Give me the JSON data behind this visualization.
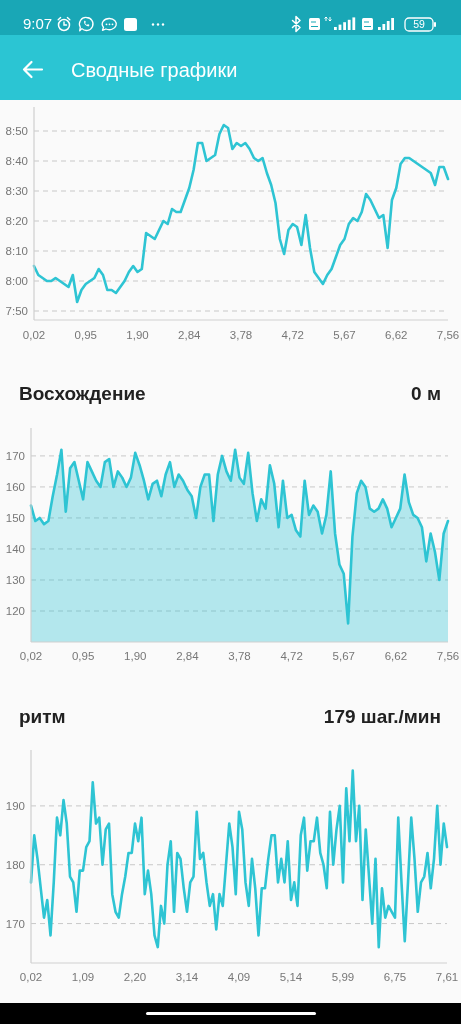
{
  "chart_data": [
    {
      "type": "other",
      "title": "Сводные графики",
      "annotations": [
        "9:07",
        "59"
      ]
    },
    {
      "type": "line",
      "color": "#2ec4d3",
      "categories": [
        "0,02",
        null,
        null,
        null,
        null,
        null,
        null,
        null,
        null,
        null,
        null,
        null,
        "0,95",
        null,
        null,
        null,
        null,
        null,
        null,
        null,
        null,
        null,
        null,
        null,
        "1,90",
        null,
        null,
        null,
        null,
        null,
        null,
        null,
        null,
        null,
        null,
        null,
        "2,84",
        null,
        null,
        null,
        null,
        null,
        null,
        null,
        null,
        null,
        null,
        null,
        "3,78",
        null,
        null,
        null,
        null,
        null,
        null,
        null,
        null,
        null,
        null,
        null,
        "4,72",
        null,
        null,
        null,
        null,
        null,
        null,
        null,
        null,
        null,
        null,
        null,
        "5,67",
        null,
        null,
        null,
        null,
        null,
        null,
        null,
        null,
        null,
        null,
        null,
        "6,62",
        null,
        null,
        null,
        null,
        null,
        null,
        null,
        null,
        null,
        null,
        null,
        "7,56"
      ],
      "values": [
        485,
        482,
        481,
        480,
        480,
        481,
        480,
        479,
        478,
        482,
        473,
        477,
        479,
        480,
        481,
        484,
        482,
        477,
        477,
        476,
        478,
        480,
        483,
        485,
        483,
        484,
        496,
        495,
        494,
        497,
        500,
        499,
        504,
        503,
        503,
        507,
        511,
        517,
        526,
        526,
        520,
        521,
        522,
        529,
        532,
        531,
        524,
        526,
        525,
        526,
        524,
        521,
        520,
        521,
        516,
        512,
        506,
        494,
        489,
        497,
        499,
        498,
        492,
        502,
        491,
        483,
        481,
        479,
        482,
        484,
        488,
        492,
        494,
        499,
        501,
        500,
        503,
        509,
        507,
        504,
        501,
        502,
        491,
        507,
        511,
        519,
        521,
        521,
        520,
        519,
        518,
        517,
        516,
        512,
        518,
        518,
        514
      ],
      "ylim": [
        467,
        538
      ],
      "yticks": [
        {
          "value": 470,
          "label": "7:50"
        },
        {
          "value": 480,
          "label": "8:00"
        },
        {
          "value": 490,
          "label": "8:10"
        },
        {
          "value": 500,
          "label": "8:20"
        },
        {
          "value": 510,
          "label": "8:30"
        },
        {
          "value": 520,
          "label": "8:40"
        },
        {
          "value": 530,
          "label": "8:50"
        }
      ],
      "grid": "y"
    },
    {
      "type": "area",
      "title": "Восхождение",
      "subtitle": "0 м",
      "color": "#2ec4d3",
      "categories": [
        "0,02",
        null,
        null,
        null,
        null,
        null,
        null,
        null,
        null,
        null,
        null,
        null,
        "0,95",
        null,
        null,
        null,
        null,
        null,
        null,
        null,
        null,
        null,
        null,
        null,
        "1,90",
        null,
        null,
        null,
        null,
        null,
        null,
        null,
        null,
        null,
        null,
        null,
        "2,84",
        null,
        null,
        null,
        null,
        null,
        null,
        null,
        null,
        null,
        null,
        null,
        "3,78",
        null,
        null,
        null,
        null,
        null,
        null,
        null,
        null,
        null,
        null,
        null,
        "4,72",
        null,
        null,
        null,
        null,
        null,
        null,
        null,
        null,
        null,
        null,
        null,
        "5,67",
        null,
        null,
        null,
        null,
        null,
        null,
        null,
        null,
        null,
        null,
        null,
        "6,62",
        null,
        null,
        null,
        null,
        null,
        null,
        null,
        null,
        null,
        null,
        null,
        "7,56"
      ],
      "values": [
        154,
        149,
        150,
        148,
        149,
        157,
        164,
        172,
        152,
        166,
        168,
        162,
        156,
        168,
        165,
        162,
        160,
        168,
        169,
        160,
        165,
        163,
        160,
        163,
        171,
        167,
        162,
        156,
        161,
        162,
        157,
        164,
        168,
        160,
        164,
        162,
        159,
        157,
        150,
        160,
        164,
        164,
        149,
        164,
        170,
        165,
        162,
        172,
        163,
        161,
        171,
        158,
        149,
        156,
        153,
        167,
        161,
        147,
        162,
        150,
        151,
        146,
        144,
        162,
        151,
        154,
        152,
        145,
        151,
        165,
        145,
        135,
        132,
        116,
        144,
        158,
        162,
        160,
        153,
        152,
        153,
        156,
        153,
        147,
        150,
        153,
        164,
        155,
        151,
        150,
        147,
        136,
        145,
        139,
        130,
        145,
        149
      ],
      "ylim": [
        110,
        179
      ],
      "yticks": [
        120,
        130,
        140,
        150,
        160,
        170
      ],
      "grid": "y"
    },
    {
      "type": "line",
      "title": "ритм",
      "subtitle": "179 шаг./мин",
      "color": "#2ec4d3",
      "categories": [
        "0,02",
        null,
        null,
        null,
        null,
        null,
        null,
        null,
        null,
        null,
        null,
        null,
        null,
        null,
        null,
        null,
        "1,09",
        null,
        null,
        null,
        null,
        null,
        null,
        null,
        null,
        null,
        null,
        null,
        null,
        null,
        null,
        null,
        "2,20",
        null,
        null,
        null,
        null,
        null,
        null,
        null,
        null,
        null,
        null,
        null,
        null,
        null,
        null,
        null,
        "3,14",
        null,
        null,
        null,
        null,
        null,
        null,
        null,
        null,
        null,
        null,
        null,
        null,
        null,
        null,
        null,
        "4,09",
        null,
        null,
        null,
        null,
        null,
        null,
        null,
        null,
        null,
        null,
        null,
        null,
        null,
        null,
        null,
        "5,14",
        null,
        null,
        null,
        null,
        null,
        null,
        null,
        null,
        null,
        null,
        null,
        null,
        null,
        null,
        null,
        "5,99",
        null,
        null,
        null,
        null,
        null,
        null,
        null,
        null,
        null,
        null,
        null,
        null,
        null,
        null,
        null,
        "6,75",
        null,
        null,
        null,
        null,
        null,
        null,
        null,
        null,
        null,
        null,
        null,
        null,
        null,
        null,
        null,
        "7,61"
      ],
      "values": [
        177,
        185,
        181,
        176,
        171,
        174,
        168,
        177,
        188,
        185,
        191,
        187,
        178,
        177,
        172,
        179,
        179,
        183,
        184,
        194,
        187,
        188,
        180,
        186,
        187,
        175,
        172,
        171,
        175,
        178,
        182,
        182,
        187,
        184,
        188,
        175,
        179,
        175,
        168,
        166,
        173,
        170,
        180,
        184,
        172,
        182,
        181,
        176,
        172,
        177,
        178,
        189,
        181,
        182,
        177,
        173,
        175,
        169,
        175,
        173,
        180,
        187,
        183,
        175,
        189,
        186,
        177,
        173,
        181,
        176,
        168,
        176,
        176,
        181,
        185,
        185,
        177,
        181,
        177,
        184,
        174,
        177,
        173,
        185,
        188,
        179,
        184,
        184,
        188,
        182,
        180,
        176,
        189,
        180,
        186,
        190,
        177,
        193,
        184,
        196,
        184,
        190,
        174,
        186,
        178,
        170,
        181,
        166,
        176,
        171,
        173,
        172,
        171,
        188,
        177,
        167,
        177,
        188,
        181,
        172,
        177,
        178,
        182,
        176,
        181,
        190,
        180,
        187,
        183
      ],
      "ylim": [
        163.3,
        199.5
      ],
      "yticks": [
        170,
        180,
        190
      ],
      "grid": "y"
    }
  ]
}
